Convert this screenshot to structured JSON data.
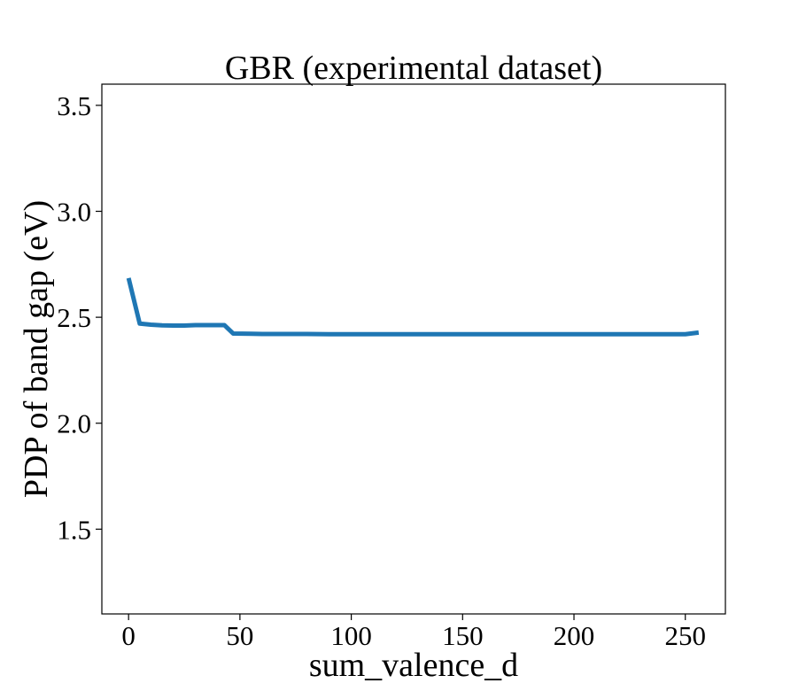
{
  "chart_data": {
    "type": "line",
    "title": "GBR (experimental dataset)",
    "xlabel": "sum_valence_d",
    "ylabel": "PDP of band gap (eV)",
    "xlim": [
      -12,
      268
    ],
    "ylim": [
      1.1,
      3.6
    ],
    "x_ticks": [
      {
        "value": 0,
        "label": "0"
      },
      {
        "value": 50,
        "label": "50"
      },
      {
        "value": 100,
        "label": "100"
      },
      {
        "value": 150,
        "label": "150"
      },
      {
        "value": 200,
        "label": "200"
      },
      {
        "value": 250,
        "label": "250"
      }
    ],
    "y_ticks": [
      {
        "value": 1.5,
        "label": "1.5"
      },
      {
        "value": 2.0,
        "label": "2.0"
      },
      {
        "value": 2.5,
        "label": "2.5"
      },
      {
        "value": 3.0,
        "label": "3.0"
      },
      {
        "value": 3.5,
        "label": "3.5"
      }
    ],
    "grid": false,
    "series": [
      {
        "color": "#1f77b4",
        "x": [
          0,
          5,
          10,
          15,
          20,
          25,
          30,
          35,
          40,
          43,
          47,
          55,
          60,
          70,
          80,
          90,
          100,
          120,
          150,
          180,
          200,
          220,
          240,
          250,
          256
        ],
        "y": [
          2.685,
          2.47,
          2.465,
          2.462,
          2.461,
          2.461,
          2.463,
          2.463,
          2.463,
          2.463,
          2.423,
          2.422,
          2.421,
          2.421,
          2.421,
          2.42,
          2.42,
          2.42,
          2.42,
          2.42,
          2.42,
          2.42,
          2.42,
          2.42,
          2.428
        ]
      }
    ]
  }
}
